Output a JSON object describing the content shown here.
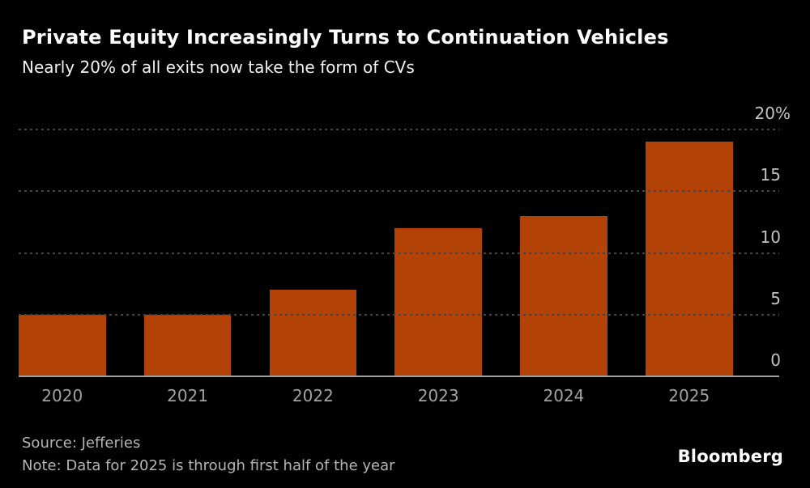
{
  "header": {
    "title": "Private Equity Increasingly Turns to Continuation Vehicles",
    "subtitle": "Nearly 20% of all exits now take the form of CVs"
  },
  "chart_data": {
    "type": "bar",
    "title": "Private Equity Increasingly Turns to Continuation Vehicles",
    "subtitle": "Nearly 20% of all exits now take the form of CVs",
    "categories": [
      "2020",
      "2021",
      "2022",
      "2023",
      "2024",
      "2025"
    ],
    "values": [
      5,
      5,
      7,
      12,
      13,
      19
    ],
    "unit": "%",
    "xlabel": "",
    "ylabel": "",
    "ylim": [
      0,
      20
    ],
    "yticks": [
      {
        "value": 0,
        "label": "0"
      },
      {
        "value": 5,
        "label": "5"
      },
      {
        "value": 10,
        "label": "10"
      },
      {
        "value": 15,
        "label": "15"
      },
      {
        "value": 20,
        "label": "20%"
      }
    ],
    "grid": "dotted horizontal, drawn over bars",
    "legend": "none",
    "bar_color": "#b34206"
  },
  "footer": {
    "source": "Source: Jefferies",
    "note": "Note: Data for 2025 is through first half of the year",
    "logo": "Bloomberg"
  },
  "colors": {
    "background": "#000000",
    "bar": "#b34206",
    "title": "#ffffff",
    "subtitle": "#f2f2f2",
    "tick_label": "#c2c2c2",
    "year_label": "#a2a2a2",
    "footer_text": "#b5b5b5",
    "gridline": "#454545",
    "axis_line": "#9e9e9e"
  }
}
